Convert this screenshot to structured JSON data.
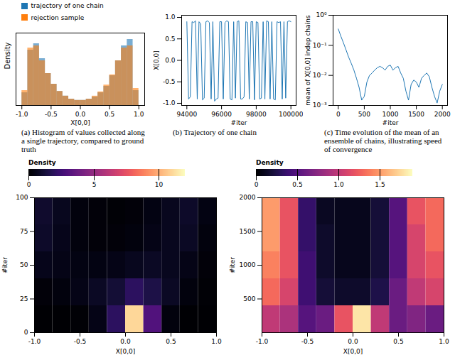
{
  "chart_data": [
    {
      "type": "histogram",
      "caption": "(a) Histogram of values collected along a single trajectory, compared to ground truth",
      "x_label": "X[0,0]",
      "y_label": "Density",
      "legend": "top",
      "tick_labels": "x",
      "bins": [
        -1.0,
        -0.9,
        -0.8,
        -0.7,
        -0.6,
        -0.5,
        -0.4,
        -0.3,
        -0.2,
        -0.1,
        0.0,
        0.1,
        0.2,
        0.3,
        0.4,
        0.5,
        0.6,
        0.7,
        0.8,
        0.9,
        1.0
      ],
      "series": [
        {
          "name": "trajectory of one chain",
          "color": "#1f77b4",
          "values": [
            0.3,
            1.3,
            1.45,
            1.1,
            0.75,
            0.5,
            0.33,
            0.22,
            0.15,
            0.12,
            0.12,
            0.15,
            0.2,
            0.3,
            0.45,
            0.7,
            1.05,
            1.4,
            1.55,
            0.35
          ]
        },
        {
          "name": "rejection sample",
          "color": "#ff7f0e",
          "values": [
            0.35,
            1.35,
            1.4,
            1.05,
            0.75,
            0.5,
            0.33,
            0.22,
            0.15,
            0.12,
            0.12,
            0.15,
            0.22,
            0.32,
            0.48,
            0.72,
            1.05,
            1.35,
            1.4,
            0.4
          ]
        }
      ],
      "xlim": [
        -1.1,
        1.1
      ],
      "xticks": [
        {
          "value": -1,
          "label": "-1.0"
        },
        {
          "value": -0.5,
          "label": "-0.5"
        },
        {
          "value": 0,
          "label": "0.0"
        },
        {
          "value": 0.5,
          "label": "0.5"
        },
        {
          "value": 1,
          "label": "1.0"
        }
      ],
      "ylim": [
        0,
        1.7
      ]
    },
    {
      "type": "line",
      "caption": "(b) Trajectory of one chain",
      "x_label": "#iter",
      "y_label": "X[0,0]",
      "color": "#1f77b4",
      "x": [
        94000,
        94100,
        94200,
        94300,
        94400,
        94500,
        94600,
        94700,
        94800,
        94900,
        95000,
        95100,
        95200,
        95300,
        95400,
        95500,
        95600,
        95700,
        95800,
        95900,
        96000,
        96100,
        96200,
        96300,
        96400,
        96500,
        96600,
        96700,
        96800,
        96900,
        97000,
        97100,
        97200,
        97300,
        97400,
        97500,
        97600,
        97700,
        97800,
        97900,
        98000,
        98100,
        98200,
        98300,
        98400,
        98500,
        98600,
        98700,
        98800,
        98900,
        99000,
        99100,
        99200,
        99300,
        99400,
        99500,
        99600,
        99700,
        99800,
        99900,
        100000
      ],
      "values": [
        0.9,
        -0.9,
        -0.85,
        0.9,
        0.88,
        0.92,
        -0.9,
        0.9,
        0.85,
        -0.92,
        -0.88,
        0.9,
        0.92,
        0.88,
        -0.9,
        0.9,
        -0.95,
        -0.9,
        -0.88,
        0.9,
        0.9,
        -0.9,
        0.88,
        0.92,
        0.9,
        -0.9,
        -0.92,
        0.9,
        -0.88,
        0.9,
        0.92,
        -0.9,
        -0.9,
        -0.85,
        0.9,
        0.88,
        -0.9,
        0.9,
        0.9,
        -0.92,
        0.9,
        0.88,
        -0.9,
        -0.88,
        0.9,
        -0.9,
        0.92,
        0.9,
        -0.9,
        0.9,
        -0.9,
        -0.92,
        0.9,
        0.88,
        0.9,
        -0.9,
        0.9,
        -0.88,
        0.9,
        0.92,
        0.9
      ],
      "xlim": [
        93700,
        100300
      ],
      "xticks": [
        94000,
        96000,
        98000,
        100000
      ],
      "ylim": [
        -1.05,
        1.05
      ],
      "yticks": [
        {
          "value": -1,
          "label": "-1.0"
        },
        {
          "value": -0.5,
          "label": "-0.5"
        },
        {
          "value": 0,
          "label": "0.0"
        },
        {
          "value": 0.5,
          "label": "0.5"
        },
        {
          "value": 1,
          "label": "1.0"
        }
      ]
    },
    {
      "type": "line",
      "caption": "(c) Time evolution of the mean of an ensemble of chains, illustrating speed of convergence",
      "x_label": "#iter",
      "y_label": "mean of X[0,0] indep chains",
      "color": "#1f77b4",
      "log": "y",
      "x": [
        0,
        50,
        100,
        150,
        200,
        250,
        300,
        350,
        400,
        450,
        500,
        550,
        600,
        650,
        700,
        750,
        800,
        850,
        900,
        950,
        1000,
        1050,
        1100,
        1150,
        1200,
        1250,
        1300,
        1350,
        1400,
        1450,
        1500,
        1550,
        1600,
        1650,
        1700,
        1750,
        1800,
        1850,
        1900,
        1950,
        2000
      ],
      "values": [
        0.35,
        0.2,
        0.12,
        0.07,
        0.04,
        0.025,
        0.015,
        0.008,
        0.004,
        0.0015,
        0.002,
        0.006,
        0.01,
        0.012,
        0.015,
        0.018,
        0.02,
        0.018,
        0.015,
        0.02,
        0.022,
        0.015,
        0.018,
        0.02,
        0.012,
        0.008,
        0.003,
        0.0015,
        0.005,
        0.007,
        0.006,
        0.004,
        0.008,
        0.01,
        0.012,
        0.009,
        0.004,
        0.002,
        0.0012,
        0.003,
        0.005
      ],
      "xlim": [
        -100,
        2100
      ],
      "xticks": [
        0,
        500,
        1000,
        1500,
        2000
      ],
      "ylim": [
        0.001,
        1
      ],
      "yticks": [
        {
          "value": 0.001,
          "label": "10⁻³"
        },
        {
          "value": 0.01,
          "label": "10⁻²"
        },
        {
          "value": 0.1,
          "label": "10⁻¹"
        },
        {
          "value": 1,
          "label": "10⁰"
        }
      ]
    },
    {
      "type": "heatmap",
      "x_label": "X[0,0]",
      "y_label": "#iter",
      "x_bins": [
        -1.0,
        -0.8,
        -0.6,
        -0.4,
        -0.2,
        0.0,
        0.2,
        0.4,
        0.6,
        0.8,
        1.0
      ],
      "y_bins": [
        0,
        20,
        40,
        60,
        80,
        100
      ],
      "cells": [
        [
          0,
          0,
          0.1,
          0.5,
          2,
          11,
          3,
          0.3,
          0,
          0
        ],
        [
          0.2,
          0.3,
          0.5,
          0.8,
          1.2,
          2,
          1.5,
          0.8,
          0.3,
          0.1
        ],
        [
          0.6,
          0.5,
          0.4,
          0.4,
          0.5,
          0.7,
          0.8,
          0.7,
          0.5,
          0.2
        ],
        [
          0.9,
          0.6,
          0.3,
          0.2,
          0.2,
          0.3,
          0.5,
          0.7,
          0.8,
          0.3
        ],
        [
          1.0,
          0.7,
          0.3,
          0.2,
          0.1,
          0.2,
          0.4,
          0.7,
          0.9,
          0.4
        ]
      ],
      "xlim": [
        -1.0,
        1.0
      ],
      "xticks": [
        {
          "value": -1,
          "label": "-1.0"
        },
        {
          "value": -0.5,
          "label": "-0.5"
        },
        {
          "value": 0,
          "label": "0.0"
        },
        {
          "value": 0.5,
          "label": "0.5"
        },
        {
          "value": 1,
          "label": "1.0"
        }
      ],
      "ylim": [
        0,
        100
      ],
      "yticks": [
        0,
        25,
        50,
        75,
        100
      ],
      "colorbar": {
        "label": "Density",
        "range": [
          0,
          12
        ],
        "ticks": [
          0,
          5,
          10
        ]
      }
    },
    {
      "type": "heatmap",
      "x_label": "X[0,0]",
      "y_label": "#iter",
      "x_bins": [
        -1.0,
        -0.8,
        -0.6,
        -0.4,
        -0.2,
        0.0,
        0.2,
        0.4,
        0.6,
        0.8,
        1.0
      ],
      "y_bins": [
        0,
        400,
        800,
        1200,
        1600,
        2000
      ],
      "cells": [
        [
          1.0,
          0.9,
          0.5,
          0.6,
          1.2,
          1.8,
          1.0,
          0.6,
          0.7,
          0.6
        ],
        [
          1.3,
          1.1,
          0.4,
          0.2,
          0.15,
          0.15,
          0.25,
          0.6,
          1.0,
          1.1
        ],
        [
          1.4,
          1.2,
          0.4,
          0.15,
          0.1,
          0.1,
          0.2,
          0.5,
          1.1,
          1.2
        ],
        [
          1.5,
          1.2,
          0.35,
          0.15,
          0.1,
          0.1,
          0.2,
          0.5,
          1.1,
          1.3
        ],
        [
          1.5,
          1.2,
          0.35,
          0.12,
          0.1,
          0.1,
          0.2,
          0.5,
          1.2,
          1.3
        ]
      ],
      "xlim": [
        -1.0,
        1.0
      ],
      "xticks": [
        {
          "value": -1,
          "label": "-1.0"
        },
        {
          "value": -0.5,
          "label": "-0.5"
        },
        {
          "value": 0,
          "label": "0.0"
        },
        {
          "value": 0.5,
          "label": "0.5"
        },
        {
          "value": 1,
          "label": "1.0"
        }
      ],
      "ylim": [
        0,
        2000
      ],
      "yticks": [
        500,
        1000,
        1500,
        2000
      ],
      "colorbar": {
        "label": "Density",
        "range": [
          0,
          1.9
        ],
        "ticks": [
          0,
          0.5,
          {
            "value": 1,
            "label": "1.0"
          },
          1.5
        ]
      }
    }
  ]
}
